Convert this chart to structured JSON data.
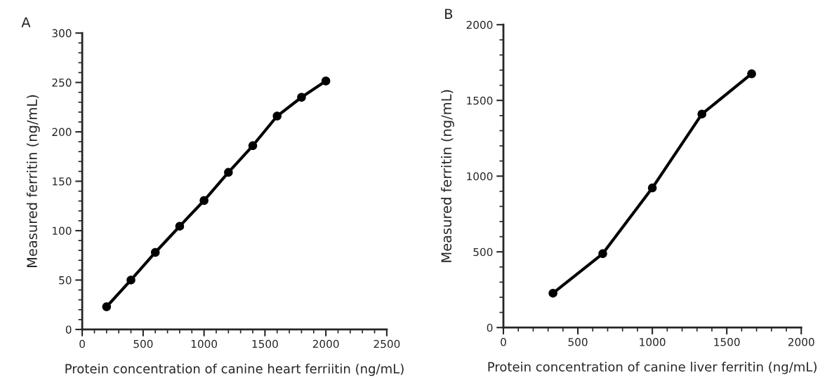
{
  "chart_data": [
    {
      "type": "line",
      "title": "A",
      "xlabel": "Protein concentration of canine heart ferriitin (ng/mL)",
      "ylabel": "Measured ferritin (ng/mL)",
      "x": [
        200,
        400,
        600,
        800,
        1000,
        1200,
        1400,
        1600,
        1800,
        2000
      ],
      "series": [
        {
          "color": "#000000",
          "values": [
            23,
            50,
            78,
            104.5,
            130.5,
            159,
            186,
            216,
            235,
            251.5
          ]
        }
      ],
      "xlim": [
        0,
        2500
      ],
      "xticks": [
        0,
        500,
        1000,
        1500,
        2000,
        2500
      ],
      "ylim": [
        0,
        300
      ],
      "yticks": [
        0,
        50,
        100,
        150,
        200,
        250,
        300
      ],
      "marker": "circle",
      "line_style": "solid",
      "grid": false,
      "legend": false
    },
    {
      "type": "line",
      "title": "B",
      "xlabel": "Protein concentration of canine liver ferritin (ng/mL)",
      "ylabel": "Measured ferritin (ng/mL)",
      "x": [
        333,
        667,
        1000,
        1333,
        1667
      ],
      "series": [
        {
          "color": "#000000",
          "values": [
            227,
            488,
            922,
            1410,
            1676
          ]
        }
      ],
      "xlim": [
        0,
        2000
      ],
      "xticks": [
        0,
        500,
        1000,
        1500,
        2000
      ],
      "ylim": [
        0,
        2000
      ],
      "yticks": [
        0,
        500,
        1000,
        1500,
        2000
      ],
      "marker": "circle",
      "line_style": "solid",
      "grid": false,
      "legend": false
    }
  ]
}
